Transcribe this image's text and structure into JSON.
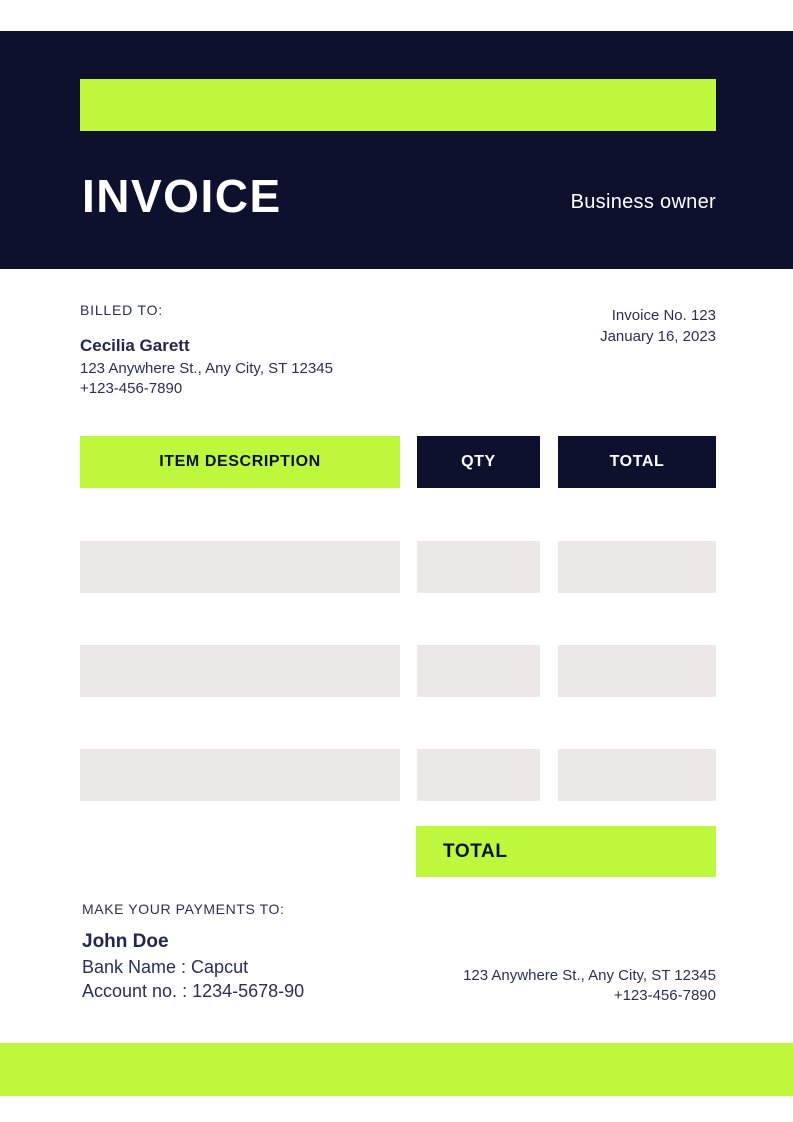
{
  "header": {
    "title": "INVOICE",
    "subtitle": "Business owner"
  },
  "billed_to": {
    "label": "BILLED TO:",
    "name": "Cecilia Garett",
    "address": "123 Anywhere St., Any City, ST 12345",
    "phone": "+123-456-7890"
  },
  "invoice_meta": {
    "number": "Invoice No. 123",
    "date": "January 16, 2023"
  },
  "table": {
    "columns": [
      "ITEM DESCRIPTION",
      "QTY",
      "TOTAL"
    ],
    "rows": [
      [
        "",
        "",
        ""
      ],
      [
        "",
        "",
        ""
      ],
      [
        "",
        "",
        ""
      ]
    ],
    "total_label": "TOTAL"
  },
  "payment": {
    "label": "MAKE YOUR PAYMENTS TO:",
    "name": "John Doe",
    "bank": "Bank Name : Capcut",
    "account": "Account no. : 1234-5678-90"
  },
  "footer_contact": {
    "address": "123 Anywhere St., Any City, ST 12345",
    "phone": "+123-456-7890"
  },
  "colors": {
    "navy": "#0d112e",
    "lime": "#bdf83c",
    "placeholder_gray": "#ebe8e5",
    "text_navy": "#2b2e58"
  }
}
